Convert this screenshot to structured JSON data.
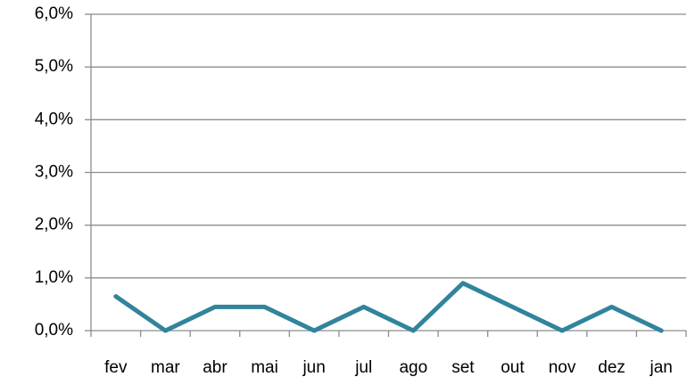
{
  "chart_data": {
    "type": "line",
    "categories": [
      "fev",
      "mar",
      "abr",
      "mai",
      "jun",
      "jul",
      "ago",
      "set",
      "out",
      "nov",
      "dez",
      "jan"
    ],
    "series": [
      {
        "color": "#31849b",
        "values": [
          0.65,
          0,
          0.45,
          0.45,
          0,
          0.45,
          0,
          0.9,
          0.45,
          0,
          0.45,
          0
        ]
      }
    ],
    "ylim": [
      0,
      6
    ],
    "yticks": [
      {
        "value": 0,
        "label": "0,0%"
      },
      {
        "value": 1,
        "label": "1,0%"
      },
      {
        "value": 2,
        "label": "2,0%"
      },
      {
        "value": 3,
        "label": "3,0%"
      },
      {
        "value": 4,
        "label": "4,0%"
      },
      {
        "value": 5,
        "label": "5,0%"
      },
      {
        "value": 6,
        "label": "6,0%"
      }
    ],
    "grid": true
  }
}
